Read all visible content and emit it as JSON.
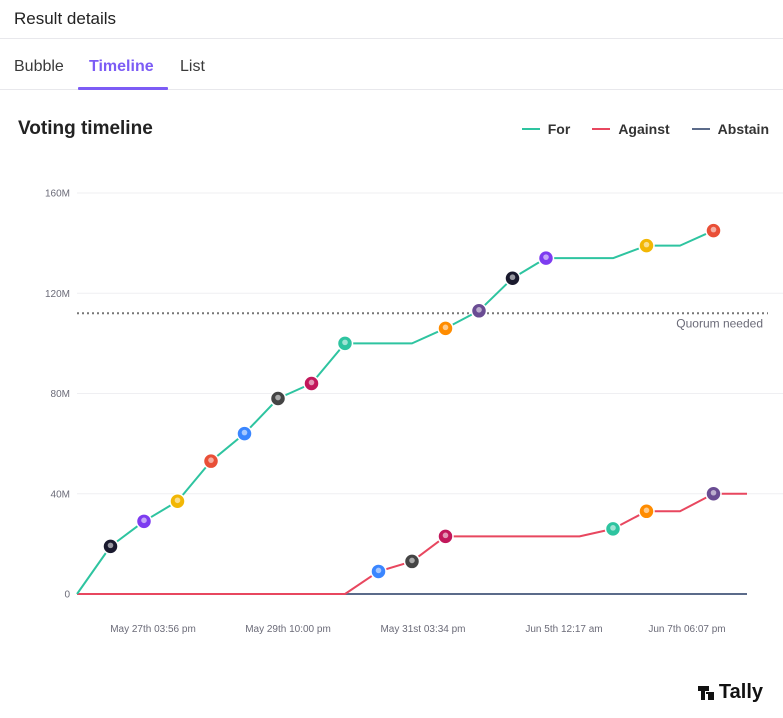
{
  "header": {
    "title": "Result details"
  },
  "tabs": [
    {
      "label": "Bubble",
      "active": false
    },
    {
      "label": "Timeline",
      "active": true
    },
    {
      "label": "List",
      "active": false
    }
  ],
  "chart": {
    "title": "Voting timeline",
    "legend": [
      {
        "label": "For",
        "color": "#2ec4a0"
      },
      {
        "label": "Against",
        "color": "#e8475f"
      },
      {
        "label": "Abstain",
        "color": "#5b6b8a"
      }
    ]
  },
  "logo": {
    "text": "Tally",
    "icon": "tally-logo-icon"
  },
  "colors": {
    "accent": "#7c5cf5",
    "for": "#2ec4a0",
    "against": "#e8475f",
    "abstain": "#5b6b8a"
  },
  "chart_data": {
    "type": "line",
    "title": "Voting timeline",
    "xlabel": "",
    "ylabel": "",
    "x_ticks": [
      "May 27th 03:56 pm",
      "May 29th 10:00 pm",
      "May 31st 03:34 pm",
      "Jun 5th 12:17 am",
      "Jun 7th 06:07 pm"
    ],
    "y_ticks": [
      "0",
      "40M",
      "80M",
      "120M",
      "160M"
    ],
    "ylim": [
      0,
      160
    ],
    "y_unit": "M",
    "grid": true,
    "legend_position": "top-right",
    "reference_line": {
      "label": "Quorum needed",
      "value": 112
    },
    "x_index_range": [
      0,
      20
    ],
    "series": [
      {
        "name": "For",
        "color": "#2ec4a0",
        "points": [
          {
            "x": 0,
            "y": 0
          },
          {
            "x": 1,
            "y": 19,
            "voter": true
          },
          {
            "x": 2,
            "y": 29,
            "voter": true
          },
          {
            "x": 3,
            "y": 37,
            "voter": true
          },
          {
            "x": 4,
            "y": 53,
            "voter": true
          },
          {
            "x": 5,
            "y": 64,
            "voter": true
          },
          {
            "x": 6,
            "y": 78,
            "voter": true
          },
          {
            "x": 7,
            "y": 84,
            "voter": true
          },
          {
            "x": 8,
            "y": 100,
            "voter": true
          },
          {
            "x": 9,
            "y": 100
          },
          {
            "x": 10,
            "y": 100
          },
          {
            "x": 11,
            "y": 106,
            "voter": true
          },
          {
            "x": 12,
            "y": 113,
            "voter": true
          },
          {
            "x": 13,
            "y": 126,
            "voter": true
          },
          {
            "x": 14,
            "y": 134,
            "voter": true
          },
          {
            "x": 15,
            "y": 134
          },
          {
            "x": 16,
            "y": 134
          },
          {
            "x": 17,
            "y": 139,
            "voter": true
          },
          {
            "x": 18,
            "y": 139
          },
          {
            "x": 19,
            "y": 145,
            "voter": true
          }
        ]
      },
      {
        "name": "Against",
        "color": "#e8475f",
        "points": [
          {
            "x": 0,
            "y": 0
          },
          {
            "x": 8,
            "y": 0
          },
          {
            "x": 9,
            "y": 9,
            "voter": true
          },
          {
            "x": 10,
            "y": 13,
            "voter": true
          },
          {
            "x": 11,
            "y": 23,
            "voter": true
          },
          {
            "x": 12,
            "y": 23
          },
          {
            "x": 13,
            "y": 23
          },
          {
            "x": 14,
            "y": 23
          },
          {
            "x": 15,
            "y": 23
          },
          {
            "x": 16,
            "y": 26,
            "voter": true
          },
          {
            "x": 17,
            "y": 33,
            "voter": true
          },
          {
            "x": 18,
            "y": 33
          },
          {
            "x": 19,
            "y": 40,
            "voter": true
          },
          {
            "x": 20,
            "y": 40
          }
        ]
      },
      {
        "name": "Abstain",
        "color": "#5b6b8a",
        "points": [
          {
            "x": 0,
            "y": 0
          },
          {
            "x": 20,
            "y": 0
          }
        ]
      }
    ]
  }
}
